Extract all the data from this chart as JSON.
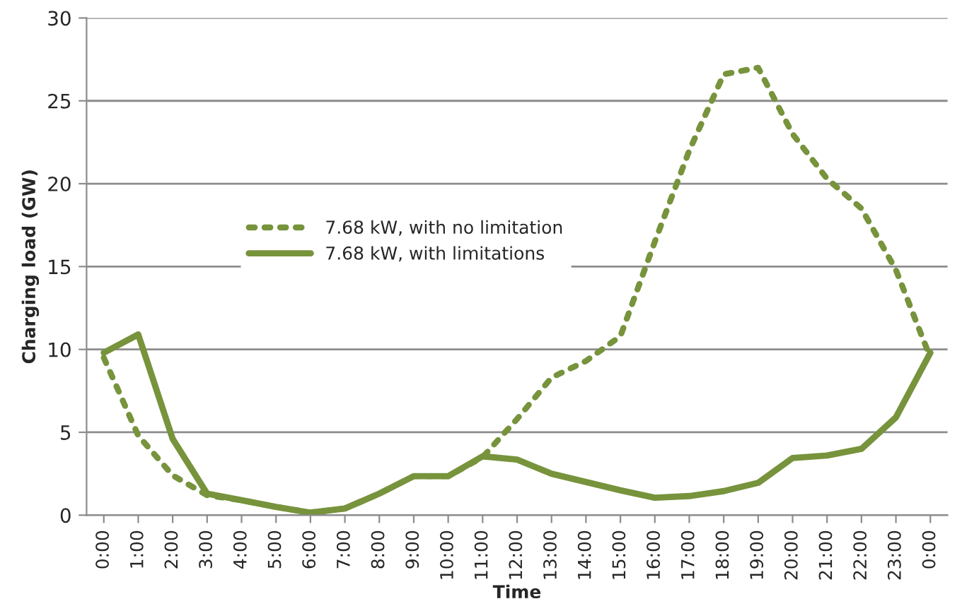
{
  "chart_data": {
    "type": "line",
    "xlabel": "Time",
    "ylabel": "Charging load (GW)",
    "categories": [
      "0:00",
      "1:00",
      "2:00",
      "3:00",
      "4:00",
      "5:00",
      "6:00",
      "7:00",
      "8:00",
      "9:00",
      "10:00",
      "11:00",
      "12:00",
      "13:00",
      "14:00",
      "15:00",
      "16:00",
      "17:00",
      "18:00",
      "19:00",
      "20:00",
      "21:00",
      "22:00",
      "23:00",
      "0:00"
    ],
    "series": [
      {
        "name": "7.68 kW, with no limitation",
        "color": "#77933c",
        "line_style": "dotted",
        "values": [
          9.5,
          4.8,
          2.4,
          1.2,
          0.9,
          0.5,
          0.15,
          0.4,
          1.3,
          2.35,
          2.35,
          3.5,
          5.8,
          8.3,
          9.3,
          10.8,
          16.5,
          22,
          26.6,
          27,
          23,
          20.3,
          18.5,
          14.8,
          9.5
        ]
      },
      {
        "name": "7.68 kW, with limitations",
        "color": "#77933c",
        "line_style": "solid",
        "values": [
          9.8,
          10.9,
          4.6,
          1.3,
          0.9,
          0.5,
          0.15,
          0.4,
          1.3,
          2.35,
          2.35,
          3.55,
          3.35,
          2.5,
          2.0,
          1.5,
          1.05,
          1.15,
          1.45,
          1.95,
          3.45,
          3.6,
          4.0,
          5.9,
          9.8
        ]
      }
    ],
    "ylim": [
      0,
      30
    ],
    "yticks": [
      0,
      5,
      10,
      15,
      20,
      25,
      30
    ],
    "grid": "y",
    "legend": "center left",
    "marker": "none"
  }
}
